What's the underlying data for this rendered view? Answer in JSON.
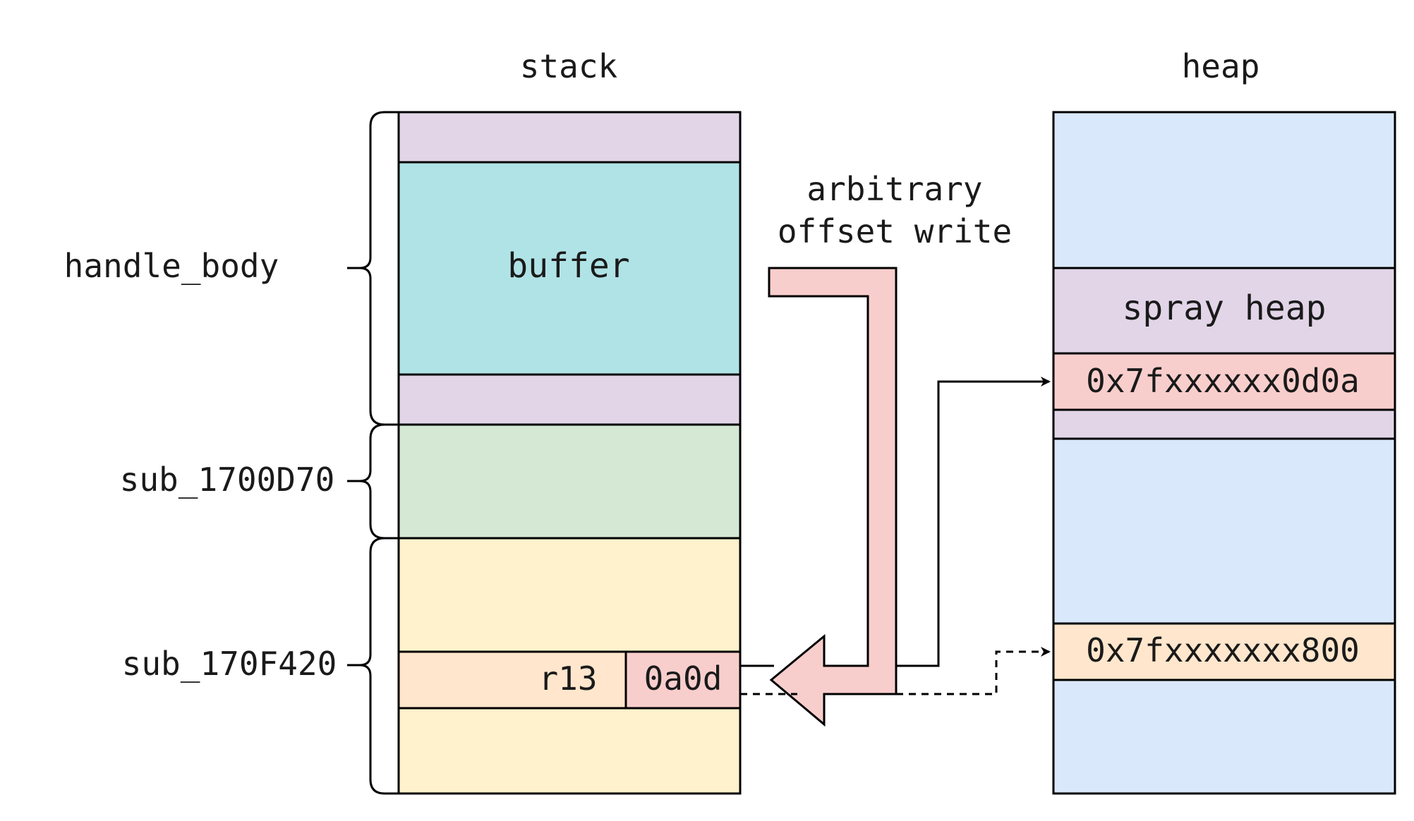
{
  "stack": {
    "title": "stack",
    "buffer_label": "buffer",
    "r13_label": "r13",
    "r13_value": "0a0d"
  },
  "heap": {
    "title": "heap",
    "spray_label": "spray heap",
    "addr_sprayed": "0x7fxxxxxx0d0a",
    "addr_original": "0x7fxxxxxxx800"
  },
  "frames": {
    "handle_body": "handle_body",
    "sub_1700D70": "sub_1700D70",
    "sub_170F420": "sub_170F420"
  },
  "write_annotation": {
    "line1": "arbitrary",
    "line2": "offset write"
  },
  "colors": {
    "purple": "#e1d5e7",
    "cyan": "#b0e3e6",
    "green": "#d5e8d4",
    "yellow": "#fff2cc",
    "orange": "#ffe6cc",
    "red": "#f8cecc",
    "blue": "#dae8fc",
    "stroke": "#000000"
  }
}
